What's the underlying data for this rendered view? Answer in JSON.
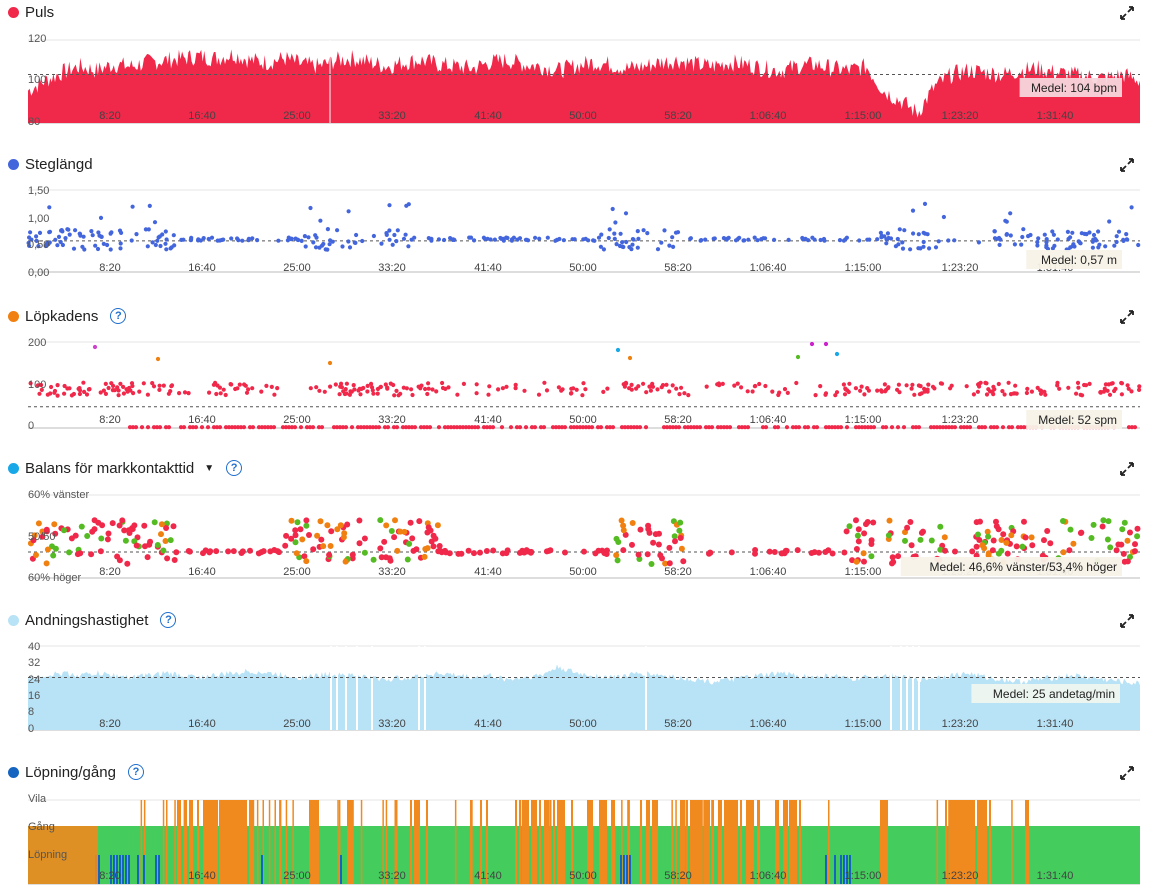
{
  "colors": {
    "puls": "#f0284a",
    "steglangd": "#4466dd",
    "lopkadens": "#f08010",
    "balans": "#18a8e8",
    "andning": "#b8e2f6",
    "lopning": "#1565c0",
    "gang": "#44cc5c",
    "vila": "#f08a1e",
    "help": "#1f6fd0"
  },
  "x_ticks": [
    "8:20",
    "16:40",
    "25:00",
    "33:20",
    "41:40",
    "50:00",
    "58:20",
    "1:06:40",
    "1:15:00",
    "1:23:20",
    "1:31:40"
  ],
  "chart_data": [
    {
      "id": "puls",
      "title": "Puls",
      "type": "area",
      "yticks": [
        "120",
        "100",
        "80"
      ],
      "ylim": [
        80,
        125
      ],
      "x_range_seconds": [
        0,
        6030
      ],
      "average": 104,
      "average_label": "Medel: 104 bpm",
      "series": [
        {
          "values": [
            96,
            101,
            105,
            108,
            106,
            109,
            108,
            110,
            111,
            112,
            113,
            112,
            114,
            111,
            110,
            112,
            109,
            108,
            111,
            112,
            110,
            108,
            110,
            111,
            109,
            108,
            107,
            110,
            111,
            109,
            108,
            106,
            108,
            110,
            109,
            107,
            108,
            110,
            111,
            109,
            108,
            110,
            109,
            107,
            106,
            108,
            109,
            107,
            106,
            108,
            96,
            91,
            85,
            98,
            104,
            106,
            105,
            104,
            106,
            107,
            105,
            104,
            103,
            102,
            104,
            101
          ]
        }
      ]
    },
    {
      "id": "steglangd",
      "title": "Steglängd",
      "type": "scatter",
      "yticks": [
        "1,50",
        "1,00",
        "0,50",
        "0,00"
      ],
      "ylim": [
        0,
        1.5
      ],
      "average": 0.57,
      "average_label": "Medel: 0,57 m"
    },
    {
      "id": "lopkadens",
      "title": "Löpkadens",
      "type": "scatter",
      "yticks": [
        "200",
        "100",
        "0"
      ],
      "ylim": [
        0,
        210
      ],
      "average": 52,
      "average_label": "Medel: 52 spm"
    },
    {
      "id": "balans",
      "title": "Balans för markkontakttid",
      "type": "scatter",
      "yticks": [
        "60% vänster",
        "50/50",
        "60% höger"
      ],
      "average_label": "Medel: 46,6% vänster/53,4% höger"
    },
    {
      "id": "andning",
      "title": "Andningshastighet",
      "type": "area",
      "yticks": [
        "40",
        "32",
        "24",
        "16",
        "8",
        "0"
      ],
      "ylim": [
        0,
        40
      ],
      "average": 25,
      "average_label": "Medel: 25 andetag/min",
      "series": [
        {
          "values": [
            25,
            26,
            27,
            26,
            27,
            26,
            25,
            26,
            27,
            26,
            25,
            26,
            27,
            28,
            27,
            26,
            25,
            26,
            27,
            26,
            25,
            24,
            25,
            26,
            27,
            26,
            25,
            26,
            24,
            25,
            26,
            30,
            27,
            26,
            25,
            26,
            27,
            26,
            25,
            24,
            23,
            24,
            25,
            26,
            27,
            26,
            25,
            26,
            24,
            25,
            26,
            25,
            24,
            25,
            26,
            27,
            25,
            24,
            23,
            24,
            25,
            26,
            25,
            24,
            23,
            22
          ]
        }
      ]
    },
    {
      "id": "lopning",
      "title": "Löpning/gång",
      "type": "area",
      "yticks": [
        "Vila",
        "Gång",
        "Löpning"
      ]
    }
  ]
}
